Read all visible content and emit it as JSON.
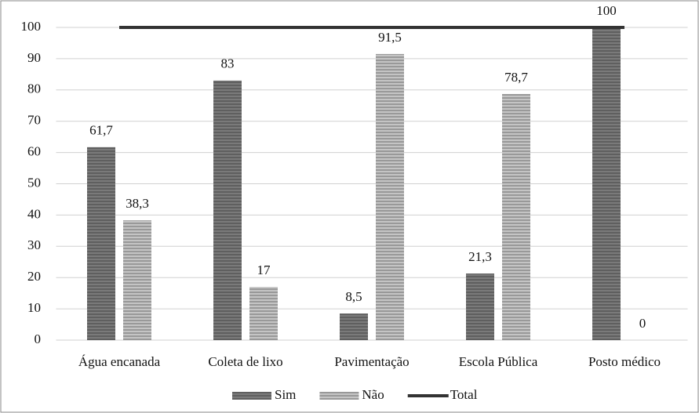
{
  "chart_data": {
    "type": "bar",
    "categories": [
      "Água encanada",
      "Coleta de lixo",
      "Pavimentação",
      "Escola Pública",
      "Posto médico"
    ],
    "series": [
      {
        "name": "Sim",
        "color": "#7a7a7a",
        "values": [
          61.7,
          83,
          8.5,
          21.3,
          100
        ],
        "value_labels": [
          "61,7",
          "83",
          "8,5",
          "21,3",
          "100"
        ]
      },
      {
        "name": "Não",
        "color": "#c4c4c4",
        "values": [
          38.3,
          17,
          91.5,
          78.7,
          0
        ],
        "value_labels": [
          "38,3",
          "17",
          "91,5",
          "78,7",
          "0"
        ]
      },
      {
        "name": "Total",
        "type": "line",
        "color": "#333333",
        "values": [
          100,
          100,
          100,
          100,
          100
        ]
      }
    ],
    "ylim": [
      0,
      100
    ],
    "yticks": [
      0,
      10,
      20,
      30,
      40,
      50,
      60,
      70,
      80,
      90,
      100
    ],
    "grid": true,
    "legend": "bottom"
  }
}
